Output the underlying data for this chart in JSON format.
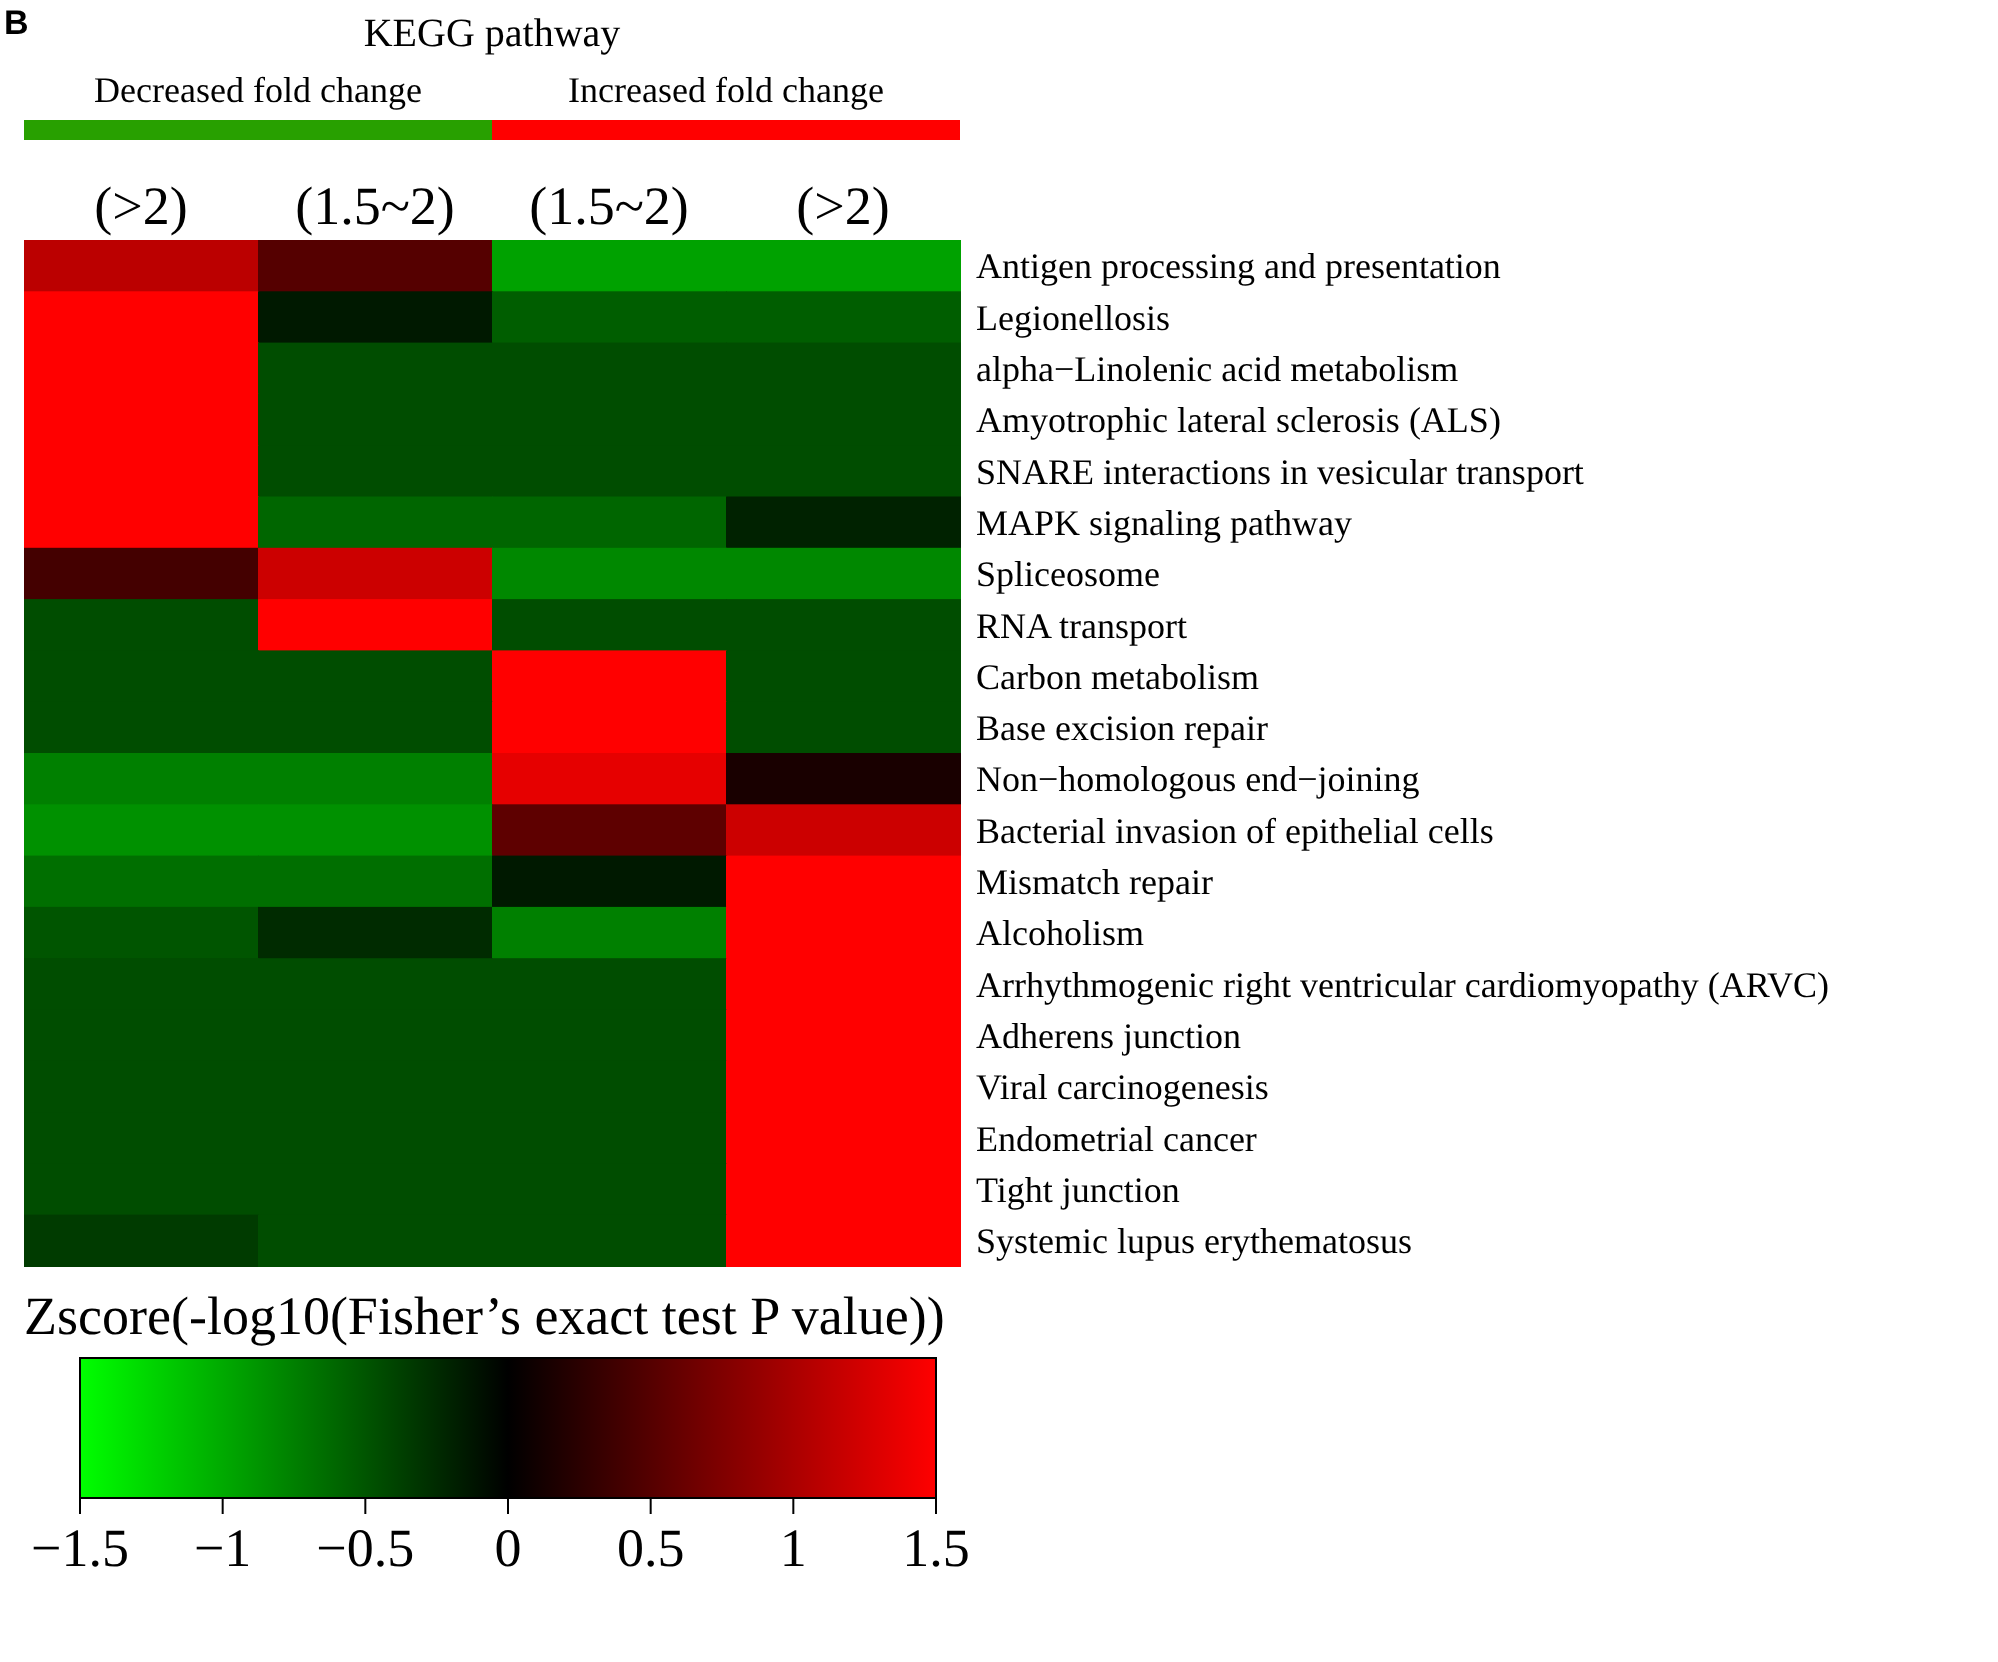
{
  "chart_data": {
    "type": "heatmap",
    "title": "KEGG pathway",
    "annotations": [
      "B",
      "Decreased fold change",
      "Increased fold change"
    ],
    "categories": [
      "(>2)",
      "(1.5~2)",
      "(1.5~2)",
      "(>2)"
    ],
    "y_categories": [
      "Antigen processing and presentation",
      "Legionellosis",
      "alpha−Linolenic acid metabolism",
      "Amyotrophic lateral sclerosis (ALS)",
      "SNARE interactions in vesicular transport",
      "MAPK signaling pathway",
      "Spliceosome",
      "RNA transport",
      "Carbon metabolism",
      "Base excision repair",
      "Non−homologous end−joining",
      "Bacterial invasion of epithelial cells",
      "Mismatch repair",
      "Alcoholism",
      "Arrhythmogenic right ventricular cardiomyopathy (ARVC)",
      "Adherens junction",
      "Viral carcinogenesis",
      "Endometrial cancer",
      "Tight junction",
      "Systemic lupus erythematosus"
    ],
    "cells": [
      [
        1.1,
        0.5,
        -0.95,
        -0.95
      ],
      [
        1.5,
        -0.15,
        -0.55,
        -0.55
      ],
      [
        1.5,
        -0.45,
        -0.45,
        -0.45
      ],
      [
        1.5,
        -0.45,
        -0.45,
        -0.45
      ],
      [
        1.5,
        -0.45,
        -0.45,
        -0.45
      ],
      [
        1.5,
        -0.6,
        -0.6,
        -0.2
      ],
      [
        0.4,
        1.2,
        -0.8,
        -0.8
      ],
      [
        -0.45,
        1.5,
        -0.45,
        -0.45
      ],
      [
        -0.45,
        -0.45,
        1.5,
        -0.45
      ],
      [
        -0.45,
        -0.45,
        1.5,
        -0.45
      ],
      [
        -0.75,
        -0.75,
        1.35,
        0.15
      ],
      [
        -0.85,
        -0.85,
        0.55,
        1.2
      ],
      [
        -0.65,
        -0.65,
        -0.15,
        1.5
      ],
      [
        -0.5,
        -0.25,
        -0.75,
        1.5
      ],
      [
        -0.45,
        -0.45,
        -0.45,
        1.5
      ],
      [
        -0.45,
        -0.45,
        -0.45,
        1.5
      ],
      [
        -0.45,
        -0.45,
        -0.45,
        1.5
      ],
      [
        -0.45,
        -0.45,
        -0.45,
        1.5
      ],
      [
        -0.45,
        -0.45,
        -0.45,
        1.5
      ],
      [
        -0.35,
        -0.45,
        -0.45,
        1.5
      ]
    ],
    "clabel": "Zscore(-log10(Fisher’s exact test P value))",
    "clim": [
      -1.5,
      1.5
    ],
    "cticks": [
      -1.5,
      -1,
      -0.5,
      0,
      0.5,
      1,
      1.5
    ]
  }
}
